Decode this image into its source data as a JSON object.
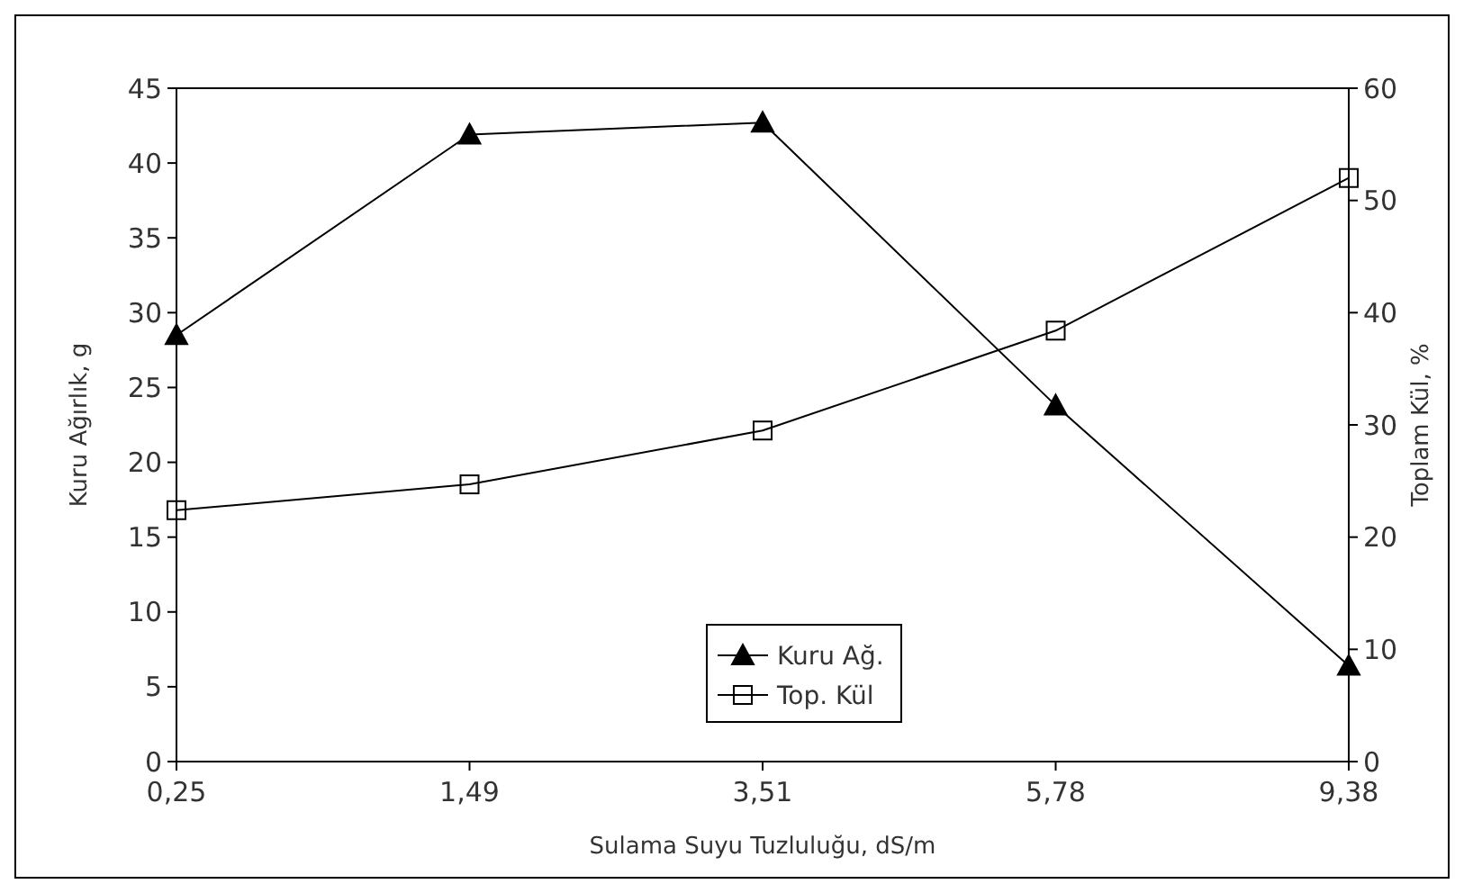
{
  "chart_data": {
    "type": "line",
    "xlabel": "Sulama Suyu Tuzluluğu, dS/m",
    "ylabel": "Kuru Ağırlık, g",
    "y2label": "Toplam Kül, %",
    "categories": [
      "0,25",
      "1,49",
      "3,51",
      "5,78",
      "9,38"
    ],
    "series": [
      {
        "name": "Kuru Ağ.",
        "color": "#000000",
        "marker": "triangle",
        "values": [
          28.5,
          41.9,
          42.7,
          23.8,
          6.4
        ]
      },
      {
        "name": "Top. Kül",
        "color": "#000000",
        "marker": "square",
        "axis": "y2",
        "values": [
          22.4,
          24.7,
          29.5,
          38.4,
          52.0
        ]
      }
    ],
    "ylim": [
      0,
      45
    ],
    "yticks": [
      0,
      5,
      10,
      15,
      20,
      25,
      30,
      35,
      40,
      45
    ],
    "y2lim": [
      0,
      60
    ],
    "y2ticks": [
      0,
      10,
      20,
      30,
      40,
      50,
      60
    ],
    "grid": false,
    "legend": "bottom",
    "line_style": "solid"
  }
}
